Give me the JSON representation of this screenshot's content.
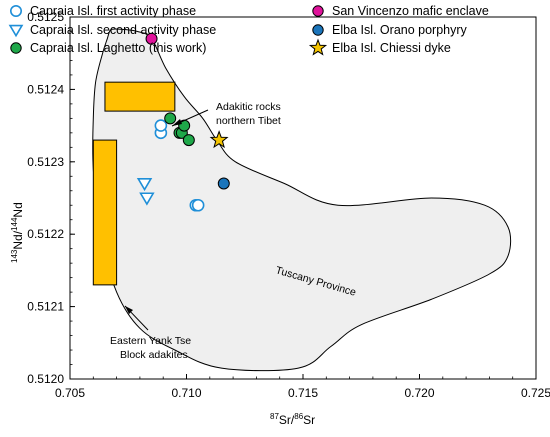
{
  "chart_data": {
    "type": "scatter",
    "xlabel": {
      "pre": "87",
      "main": "Sr/",
      "pre2": "86",
      "main2": "Sr"
    },
    "ylabel": {
      "pre": "143",
      "main": "Nd/",
      "pre2": "144",
      "main2": "Nd"
    },
    "xlim": [
      0.705,
      0.725
    ],
    "ylim": [
      0.512,
      0.5125
    ],
    "xticks": [
      0.705,
      0.71,
      0.715,
      0.72,
      0.725
    ],
    "xtick_labels": [
      "0.705",
      "0.710",
      "0.715",
      "0.720",
      "0.725"
    ],
    "yticks": [
      0.512,
      0.5121,
      0.5122,
      0.5123,
      0.5124,
      0.5125
    ],
    "ytick_labels": [
      "0.5120",
      "0.5121",
      "0.5122",
      "0.5123",
      "0.5124",
      "0.5125"
    ],
    "grid": false,
    "legend_position": "top",
    "series": [
      {
        "name": "Capraia Isl. first activity phase",
        "marker": "circle-open",
        "color": "#1f8fd8",
        "points": [
          [
            0.7089,
            0.51234
          ],
          [
            0.7089,
            0.51235
          ],
          [
            0.7104,
            0.51224
          ],
          [
            0.7105,
            0.51224
          ]
        ]
      },
      {
        "name": "Capraia Isl. second activity phase",
        "marker": "triangle-down-open",
        "color": "#1f8fd8",
        "points": [
          [
            0.7082,
            0.51227
          ],
          [
            0.7083,
            0.51225
          ]
        ]
      },
      {
        "name": "Capraia Isl. Laghetto (this work)",
        "marker": "circle-filled",
        "color": "#1fa84a",
        "points": [
          [
            0.7093,
            0.51236
          ],
          [
            0.7097,
            0.51234
          ],
          [
            0.7098,
            0.51234
          ],
          [
            0.7099,
            0.51235
          ],
          [
            0.7101,
            0.51233
          ]
        ]
      },
      {
        "name": "San Vincenzo mafic enclave",
        "marker": "circle-filled",
        "color": "#e0139b",
        "points": [
          [
            0.7085,
            0.51247
          ]
        ]
      },
      {
        "name": "Elba Isl. Orano porphyry",
        "marker": "circle-filled",
        "color": "#1b75bb",
        "points": [
          [
            0.7116,
            0.51227
          ]
        ]
      },
      {
        "name": "Elba Isl. Chiessi dyke",
        "marker": "star",
        "color": "#f5c400",
        "points": [
          [
            0.7114,
            0.51233
          ]
        ]
      }
    ],
    "rectangles": [
      {
        "label": "Adakitic rocks northern Tibet",
        "x": [
          0.7065,
          0.7095
        ],
        "y": [
          0.51237,
          0.51241
        ],
        "color": "#ffc000"
      },
      {
        "label": "Eastern Yank Tse Block adakites",
        "x": [
          0.706,
          0.707
        ],
        "y": [
          0.51213,
          0.51233
        ],
        "color": "#ffc000"
      }
    ],
    "field": {
      "label": "Tuscany Province",
      "fill": "#efefef",
      "outline": [
        [
          0.7064,
          0.51245
        ],
        [
          0.7066,
          0.51247
        ],
        [
          0.7067,
          0.51248
        ],
        [
          0.7068,
          0.512483
        ],
        [
          0.7072,
          0.512483
        ],
        [
          0.7079,
          0.51248
        ],
        [
          0.7085,
          0.51247
        ],
        [
          0.7091,
          0.51243
        ],
        [
          0.7099,
          0.51239
        ],
        [
          0.7107,
          0.51236
        ],
        [
          0.7113,
          0.51233
        ],
        [
          0.7121,
          0.5123
        ],
        [
          0.7142,
          0.51227
        ],
        [
          0.7165,
          0.51224
        ],
        [
          0.7205,
          0.51225
        ],
        [
          0.7228,
          0.51224
        ],
        [
          0.7238,
          0.51221
        ],
        [
          0.7238,
          0.51217
        ],
        [
          0.723,
          0.512145
        ],
        [
          0.7205,
          0.51211
        ],
        [
          0.7175,
          0.512075
        ],
        [
          0.7162,
          0.512045
        ],
        [
          0.7148,
          0.512015
        ],
        [
          0.7115,
          0.512015
        ],
        [
          0.7095,
          0.51204
        ],
        [
          0.708,
          0.51207
        ],
        [
          0.707,
          0.51212
        ],
        [
          0.7063,
          0.5122
        ],
        [
          0.706,
          0.51229
        ],
        [
          0.706,
          0.51236
        ],
        [
          0.7061,
          0.51241
        ]
      ]
    },
    "annotations": [
      {
        "lines": [
          "Adakitic rocks",
          "northern Tibet"
        ]
      },
      {
        "lines": [
          "Eastern Yank Tse",
          "Block adakites"
        ]
      }
    ]
  }
}
